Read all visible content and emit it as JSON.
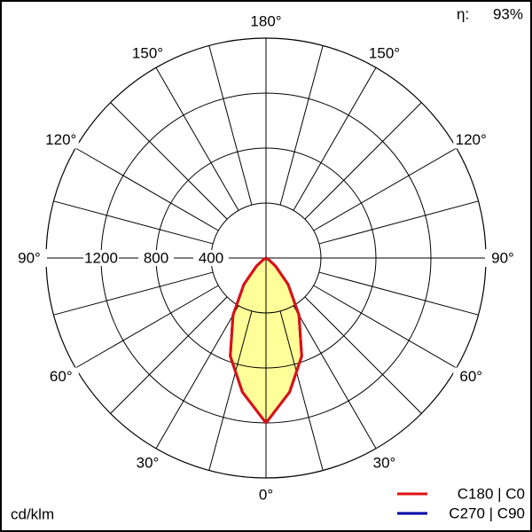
{
  "chart_data": {
    "type": "polar",
    "unit_label": "cd/klm",
    "efficiency": {
      "label": "η:",
      "value": 93,
      "value_label": "93%"
    },
    "x": [
      0,
      10,
      20,
      30,
      40,
      50,
      60,
      70,
      80,
      90
    ],
    "series": [
      {
        "name": "C270 | C90",
        "color": "#0000aa",
        "values": [
          1200,
          990,
          760,
          480,
          250,
          90,
          20,
          0,
          0,
          0
        ]
      },
      {
        "name": "C180 | C0",
        "color": "#dd1111",
        "values": [
          1200,
          990,
          760,
          480,
          250,
          90,
          20,
          0,
          0,
          0
        ]
      }
    ],
    "fill_color": "#ffff99",
    "rlim": [
      0,
      1600
    ],
    "rticks": [
      400,
      800,
      1200
    ],
    "angle_ticks": [
      {
        "value": 0,
        "label": "0°"
      },
      {
        "value": 30,
        "label": "30°"
      },
      {
        "value": 60,
        "label": "60°"
      },
      {
        "value": 90,
        "label": "90°"
      },
      {
        "value": 120,
        "label": "120°"
      },
      {
        "value": 150,
        "label": "150°"
      },
      {
        "value": 180,
        "label": "180°"
      }
    ]
  }
}
